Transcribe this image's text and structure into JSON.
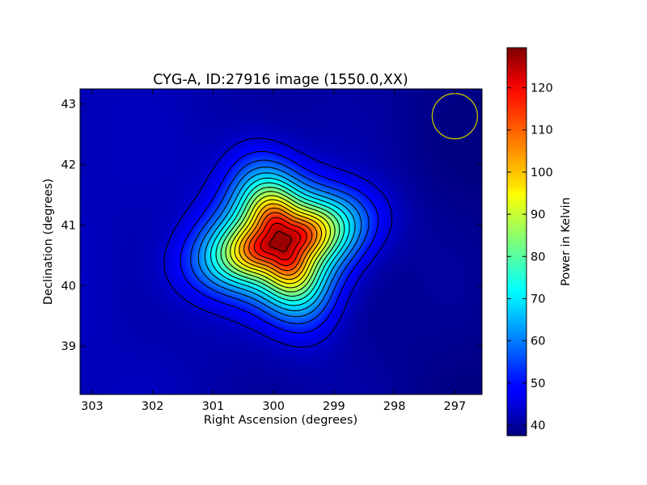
{
  "chart_data": {
    "type": "heatmap",
    "title": "CYG-A, ID:27916 image (1550.0,XX)",
    "xlabel": "Right Ascension (degrees)",
    "ylabel": "Declination (degrees)",
    "xlim": [
      303.2,
      296.55
    ],
    "ylim": [
      38.2,
      43.25
    ],
    "x_ticks": [
      303,
      302,
      301,
      300,
      299,
      298,
      297
    ],
    "y_ticks": [
      39,
      40,
      41,
      42,
      43
    ],
    "x_tick_labels": [
      "303",
      "302",
      "301",
      "300",
      "299",
      "298",
      "297"
    ],
    "y_tick_labels": [
      "39",
      "40",
      "41",
      "42",
      "43"
    ],
    "grid": false,
    "colormap": "jet",
    "colorbar": {
      "label": "Power in Kelvin",
      "range": [
        37.5,
        129.5
      ],
      "ticks": [
        40,
        50,
        60,
        70,
        80,
        90,
        100,
        110,
        120
      ],
      "tick_labels": [
        "40",
        "50",
        "60",
        "70",
        "80",
        "90",
        "100",
        "110",
        "120"
      ]
    },
    "source": {
      "ra": 299.87,
      "dec": 40.73,
      "peak": 129
    },
    "background": 43,
    "contour_levels": [
      45,
      50,
      55,
      60,
      65,
      70,
      75,
      80,
      85,
      90,
      95,
      100,
      105,
      110,
      115,
      120,
      125
    ],
    "beam": {
      "ra": 297.0,
      "dec": 42.8,
      "color": "#bfbf00"
    }
  }
}
